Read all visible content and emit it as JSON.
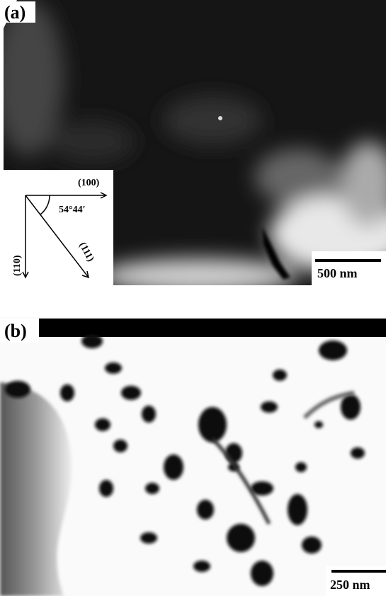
{
  "panel_a": {
    "label": "(a)",
    "axes": {
      "x_label": "(100)",
      "angle_label": "54°44′",
      "y_label": "(110)",
      "diagonal_label": "(111)"
    },
    "scale_bar": "500 nm"
  },
  "panel_b": {
    "label": "(b)",
    "scale_bar": "250 nm"
  }
}
